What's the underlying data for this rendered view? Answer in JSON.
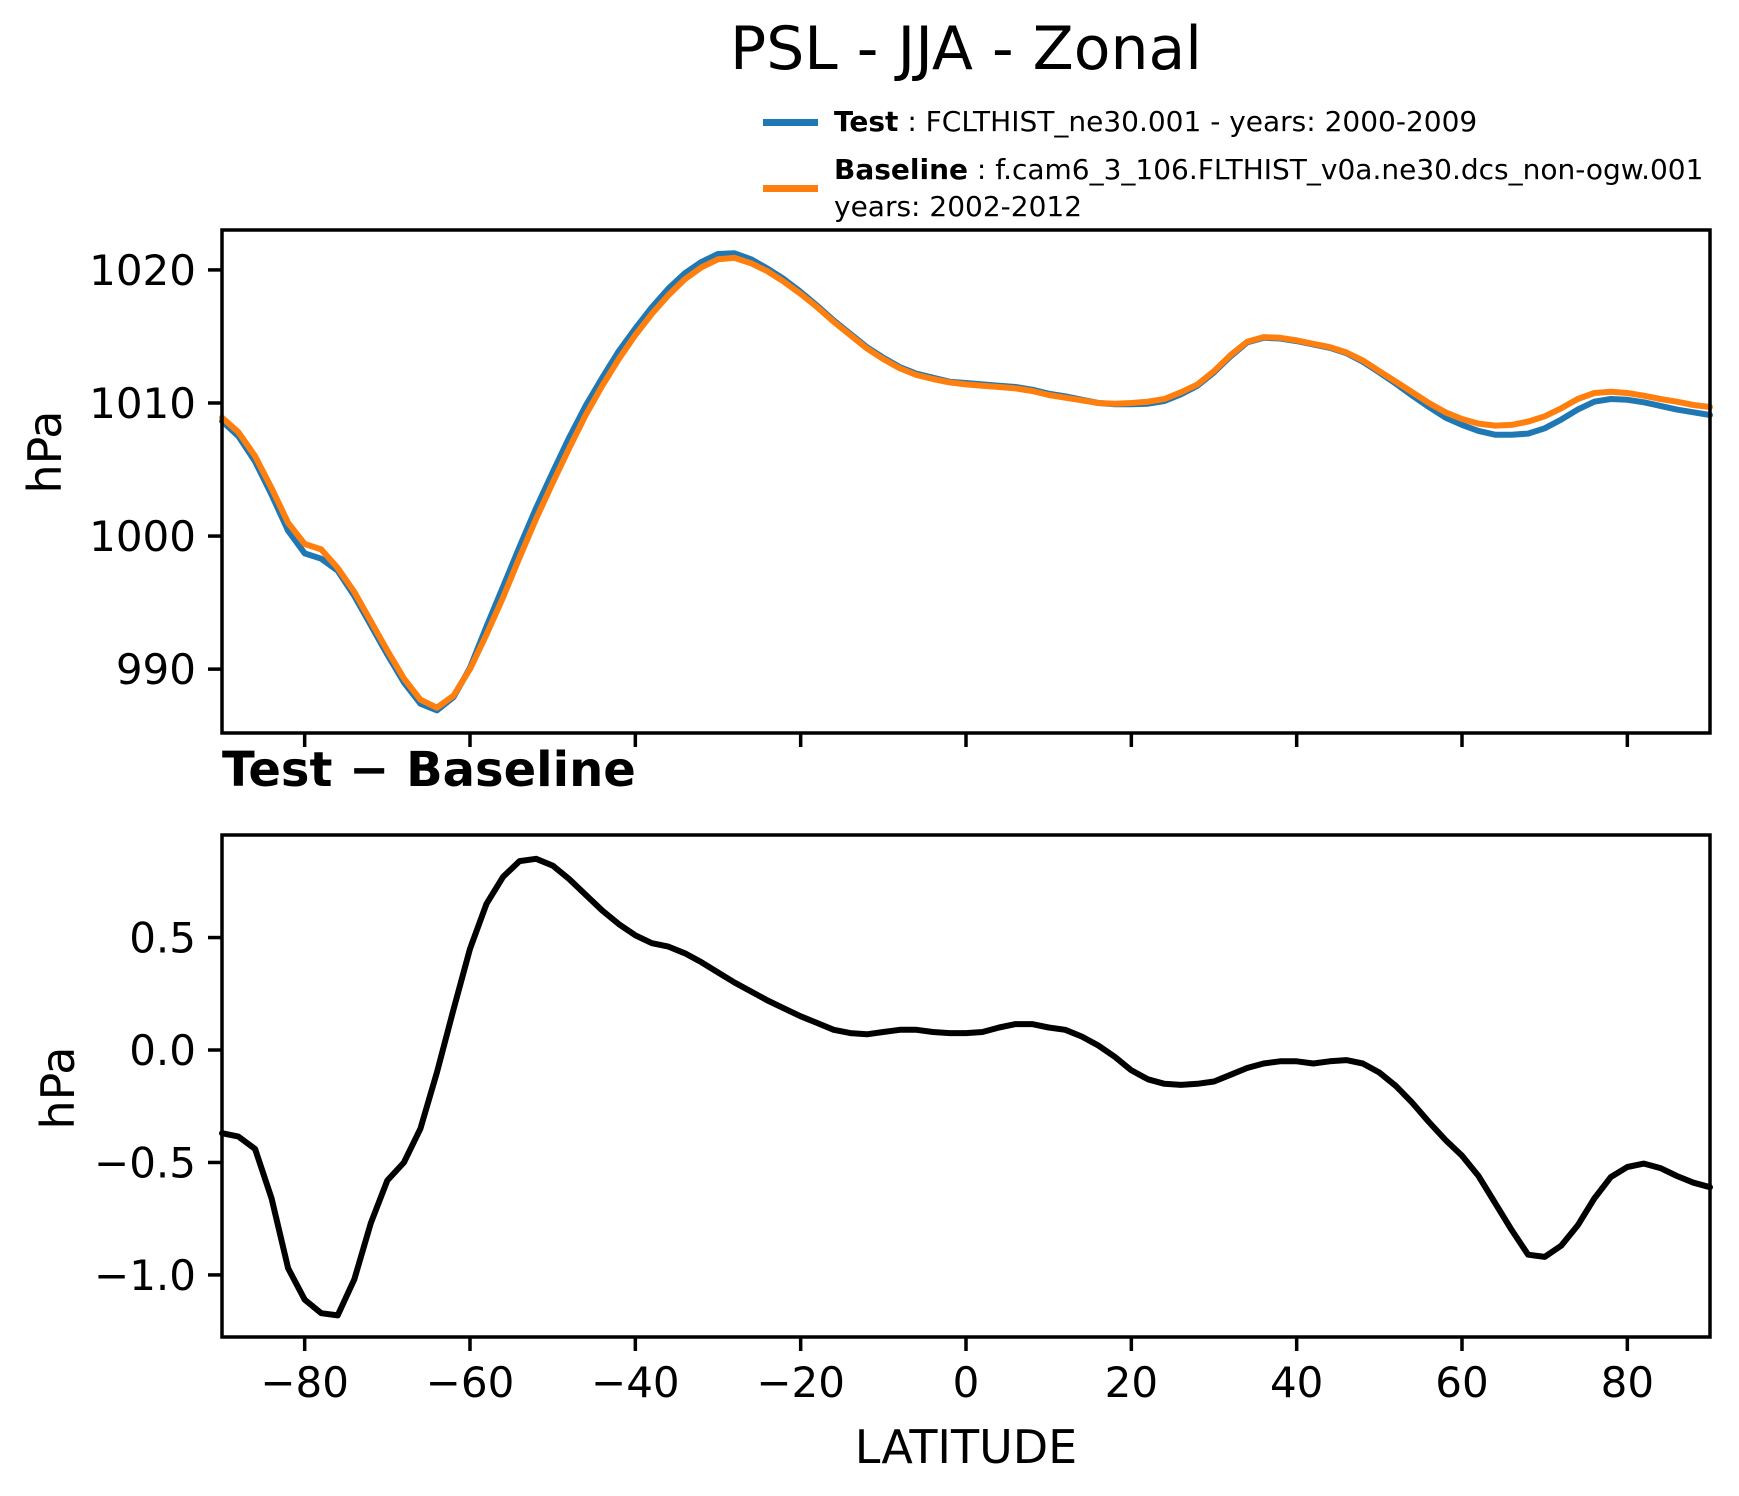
{
  "title": "PSL - JJA - Zonal",
  "colors": {
    "test": "#1f77b4",
    "baseline": "#ff7f0e",
    "diff": "#000000",
    "axes": "#000000"
  },
  "legend": {
    "test_label": "Test",
    "test_desc": " : FCLTHIST_ne30.001 - years: 2000-2009",
    "baseline_label": "Baseline",
    "baseline_desc": " : f.cam6_3_106.FLTHIST_v0a.ne30.dcs_non-ogw.001",
    "baseline_years": "years: 2002-2012"
  },
  "chart_data": [
    {
      "type": "line",
      "title": "",
      "xlabel": "",
      "ylabel": "hPa",
      "xlim": [
        -90,
        90
      ],
      "ylim": [
        985.2,
        1023.0
      ],
      "grid": false,
      "legend_position": "upper right, above axes",
      "xticks": [
        -80,
        -60,
        -40,
        -20,
        0,
        20,
        40,
        60,
        80
      ],
      "xticklabels": null,
      "yticks": [
        990,
        1000,
        1010,
        1020
      ],
      "yticklabels": [
        "990",
        "1000",
        "1010",
        "1020"
      ],
      "x": [
        -90,
        -88,
        -86,
        -84,
        -82,
        -80,
        -78,
        -76,
        -74,
        -72,
        -70,
        -68,
        -66,
        -64,
        -62,
        -60,
        -58,
        -56,
        -54,
        -52,
        -50,
        -48,
        -46,
        -44,
        -42,
        -40,
        -38,
        -36,
        -34,
        -32,
        -30,
        -28,
        -26,
        -24,
        -22,
        -20,
        -18,
        -16,
        -14,
        -12,
        -10,
        -8,
        -6,
        -4,
        -2,
        0,
        2,
        4,
        6,
        8,
        10,
        12,
        14,
        16,
        18,
        20,
        22,
        24,
        26,
        28,
        30,
        32,
        34,
        36,
        38,
        40,
        42,
        44,
        46,
        48,
        50,
        52,
        54,
        56,
        58,
        60,
        62,
        64,
        66,
        68,
        70,
        72,
        74,
        76,
        78,
        80,
        82,
        84,
        86,
        88,
        90
      ],
      "series": [
        {
          "name": "Test",
          "color": "#1f77b4",
          "values": [
            1008.65,
            1007.5,
            1005.6,
            1003.1,
            1000.4,
            998.7,
            998.3,
            997.4,
            995.5,
            993.3,
            991.1,
            989.0,
            987.4,
            986.9,
            987.9,
            990.1,
            993.2,
            996.2,
            999.2,
            1002.1,
            1004.8,
            1007.4,
            1009.8,
            1011.9,
            1013.9,
            1015.6,
            1017.2,
            1018.6,
            1019.75,
            1020.6,
            1021.2,
            1021.25,
            1020.8,
            1020.1,
            1019.3,
            1018.35,
            1017.3,
            1016.2,
            1015.2,
            1014.2,
            1013.4,
            1012.7,
            1012.2,
            1011.9,
            1011.6,
            1011.5,
            1011.4,
            1011.3,
            1011.2,
            1011.0,
            1010.7,
            1010.5,
            1010.25,
            1010.0,
            1009.9,
            1009.9,
            1009.95,
            1010.15,
            1010.65,
            1011.3,
            1012.3,
            1013.5,
            1014.55,
            1014.9,
            1014.85,
            1014.65,
            1014.4,
            1014.15,
            1013.75,
            1013.1,
            1012.3,
            1011.45,
            1010.55,
            1009.7,
            1008.9,
            1008.35,
            1007.9,
            1007.62,
            1007.62,
            1007.7,
            1008.1,
            1008.75,
            1009.5,
            1010.1,
            1010.3,
            1010.24,
            1010.05,
            1009.78,
            1009.5,
            1009.3,
            1009.1
          ]
        },
        {
          "name": "Baseline",
          "color": "#ff7f0e",
          "values": [
            1008.9,
            1007.8,
            1006.0,
            1003.6,
            1001.0,
            999.4,
            999.0,
            997.6,
            995.8,
            993.6,
            991.4,
            989.3,
            987.7,
            987.1,
            988.0,
            990.0,
            992.6,
            995.4,
            998.4,
            1001.3,
            1004.0,
            1006.6,
            1009.1,
            1011.3,
            1013.3,
            1015.1,
            1016.7,
            1018.1,
            1019.3,
            1020.2,
            1020.8,
            1020.9,
            1020.5,
            1019.9,
            1019.1,
            1018.2,
            1017.2,
            1016.1,
            1015.1,
            1014.1,
            1013.3,
            1012.6,
            1012.1,
            1011.8,
            1011.55,
            1011.4,
            1011.3,
            1011.2,
            1011.1,
            1010.9,
            1010.6,
            1010.4,
            1010.2,
            1010.0,
            1009.95,
            1010.0,
            1010.1,
            1010.3,
            1010.8,
            1011.4,
            1012.4,
            1013.6,
            1014.6,
            1014.95,
            1014.9,
            1014.7,
            1014.45,
            1014.2,
            1013.8,
            1013.2,
            1012.4,
            1011.6,
            1010.8,
            1010.0,
            1009.3,
            1008.8,
            1008.45,
            1008.3,
            1008.35,
            1008.6,
            1009.0,
            1009.6,
            1010.3,
            1010.75,
            1010.85,
            1010.75,
            1010.55,
            1010.3,
            1010.1,
            1009.85,
            1009.7
          ]
        }
      ]
    },
    {
      "type": "line",
      "title": "Test − Baseline",
      "xlabel": "LATITUDE",
      "ylabel": "hPa",
      "xlim": [
        -90,
        90
      ],
      "ylim": [
        -1.276,
        0.956
      ],
      "grid": false,
      "xticks": [
        -80,
        -60,
        -40,
        -20,
        0,
        20,
        40,
        60,
        80
      ],
      "xticklabels": [
        "−80",
        "−60",
        "−40",
        "−20",
        "0",
        "20",
        "40",
        "60",
        "80"
      ],
      "yticks": [
        0.5,
        0.0,
        -0.5,
        -1.0
      ],
      "yticklabels": [
        "0.5",
        "0.0",
        "−0.5",
        "−1.0"
      ],
      "x": [
        -90,
        -88,
        -86,
        -84,
        -82,
        -80,
        -78,
        -76,
        -74,
        -72,
        -70,
        -68,
        -66,
        -64,
        -62,
        -60,
        -58,
        -56,
        -54,
        -52,
        -50,
        -48,
        -46,
        -44,
        -42,
        -40,
        -38,
        -36,
        -34,
        -32,
        -30,
        -28,
        -26,
        -24,
        -22,
        -20,
        -18,
        -16,
        -14,
        -12,
        -10,
        -8,
        -6,
        -4,
        -2,
        0,
        2,
        4,
        6,
        8,
        10,
        12,
        14,
        16,
        18,
        20,
        22,
        24,
        26,
        28,
        30,
        32,
        34,
        36,
        38,
        40,
        42,
        44,
        46,
        48,
        50,
        52,
        54,
        56,
        58,
        60,
        62,
        64,
        66,
        68,
        70,
        72,
        74,
        76,
        78,
        80,
        82,
        84,
        86,
        88,
        90
      ],
      "series": [
        {
          "name": "Test − Baseline",
          "color": "#000000",
          "values": [
            -0.37,
            -0.385,
            -0.44,
            -0.66,
            -0.97,
            -1.11,
            -1.17,
            -1.18,
            -1.02,
            -0.77,
            -0.58,
            -0.5,
            -0.35,
            -0.1,
            0.18,
            0.45,
            0.65,
            0.77,
            0.84,
            0.85,
            0.82,
            0.76,
            0.69,
            0.62,
            0.56,
            0.51,
            0.475,
            0.46,
            0.43,
            0.39,
            0.345,
            0.3,
            0.26,
            0.22,
            0.185,
            0.15,
            0.12,
            0.09,
            0.075,
            0.07,
            0.08,
            0.09,
            0.09,
            0.08,
            0.075,
            0.075,
            0.08,
            0.1,
            0.115,
            0.115,
            0.1,
            0.09,
            0.06,
            0.02,
            -0.03,
            -0.09,
            -0.13,
            -0.15,
            -0.155,
            -0.15,
            -0.14,
            -0.11,
            -0.08,
            -0.06,
            -0.05,
            -0.05,
            -0.06,
            -0.05,
            -0.045,
            -0.06,
            -0.1,
            -0.16,
            -0.235,
            -0.32,
            -0.4,
            -0.47,
            -0.56,
            -0.68,
            -0.8,
            -0.91,
            -0.92,
            -0.87,
            -0.78,
            -0.66,
            -0.565,
            -0.52,
            -0.505,
            -0.525,
            -0.56,
            -0.59,
            -0.61
          ]
        }
      ]
    }
  ]
}
